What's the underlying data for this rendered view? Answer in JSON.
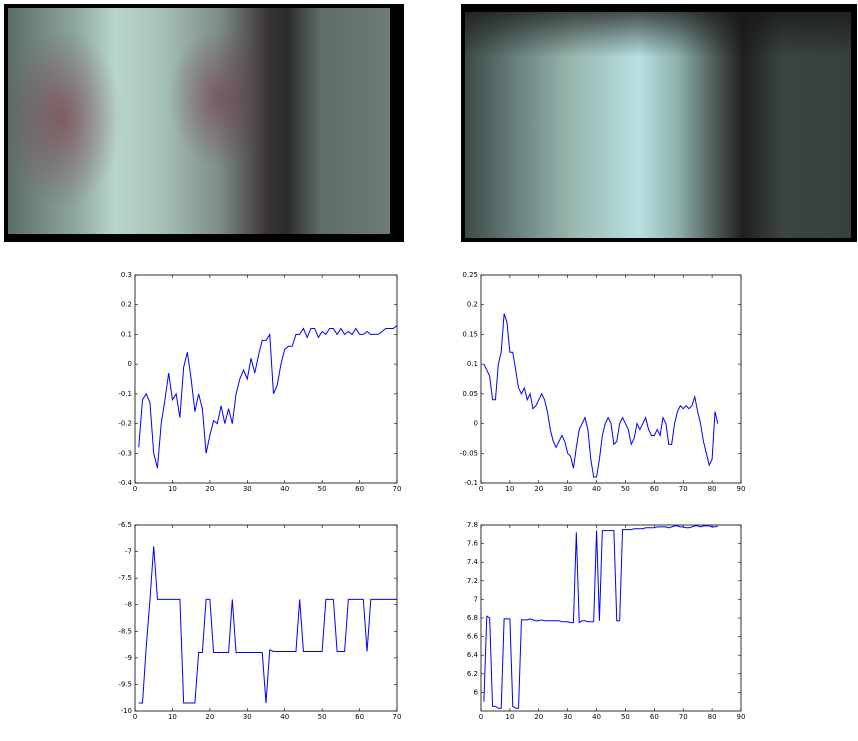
{
  "chart_data": [
    {
      "type": "line",
      "xlim": [
        0,
        70
      ],
      "xticks": [
        0,
        10,
        20,
        30,
        40,
        50,
        60,
        70
      ],
      "ylim": [
        -0.4,
        0.3
      ],
      "yticks": [
        -0.4,
        -0.3,
        -0.2,
        -0.1,
        0,
        0.1,
        0.2,
        0.3
      ],
      "series": [
        {
          "color": "#0000ff",
          "x": [
            1,
            2,
            3,
            4,
            5,
            6,
            7,
            8,
            9,
            10,
            11,
            12,
            13,
            14,
            15,
            16,
            17,
            18,
            19,
            20,
            21,
            22,
            23,
            24,
            25,
            26,
            27,
            28,
            29,
            30,
            31,
            32,
            33,
            34,
            35,
            36,
            37,
            38,
            39,
            40,
            41,
            42,
            43,
            44,
            45,
            46,
            47,
            48,
            49,
            50,
            51,
            52,
            53,
            54,
            55,
            56,
            57,
            58,
            59,
            60,
            61,
            62,
            63,
            64,
            65,
            66,
            67,
            68,
            69,
            70
          ],
          "values": [
            -0.28,
            -0.12,
            -0.1,
            -0.13,
            -0.3,
            -0.35,
            -0.2,
            -0.12,
            -0.03,
            -0.12,
            -0.1,
            -0.18,
            -0.01,
            0.04,
            -0.05,
            -0.16,
            -0.1,
            -0.15,
            -0.3,
            -0.24,
            -0.19,
            -0.2,
            -0.14,
            -0.2,
            -0.15,
            -0.2,
            -0.1,
            -0.05,
            -0.02,
            -0.05,
            0.02,
            -0.03,
            0.03,
            0.08,
            0.08,
            0.1,
            -0.1,
            -0.07,
            0.0,
            0.05,
            0.06,
            0.06,
            0.1,
            0.1,
            0.12,
            0.09,
            0.12,
            0.12,
            0.09,
            0.11,
            0.1,
            0.12,
            0.12,
            0.1,
            0.12,
            0.1,
            0.11,
            0.1,
            0.12,
            0.1,
            0.1,
            0.11,
            0.1,
            0.1,
            0.1,
            0.11,
            0.12,
            0.12,
            0.12,
            0.13
          ]
        }
      ]
    },
    {
      "type": "line",
      "xlim": [
        0,
        90
      ],
      "xticks": [
        0,
        10,
        20,
        30,
        40,
        50,
        60,
        70,
        80,
        90
      ],
      "ylim": [
        -0.1,
        0.25
      ],
      "yticks": [
        -0.1,
        -0.05,
        0,
        0.05,
        0.1,
        0.15,
        0.2,
        0.25
      ],
      "series": [
        {
          "color": "#0000ff",
          "x": [
            1,
            2,
            3,
            4,
            5,
            6,
            7,
            8,
            9,
            10,
            11,
            12,
            13,
            14,
            15,
            16,
            17,
            18,
            19,
            20,
            21,
            22,
            23,
            24,
            25,
            26,
            27,
            28,
            29,
            30,
            31,
            32,
            33,
            34,
            35,
            36,
            37,
            38,
            39,
            40,
            41,
            42,
            43,
            44,
            45,
            46,
            47,
            48,
            49,
            50,
            51,
            52,
            53,
            54,
            55,
            56,
            57,
            58,
            59,
            60,
            61,
            62,
            63,
            64,
            65,
            66,
            67,
            68,
            69,
            70,
            71,
            72,
            73,
            74,
            75,
            76,
            77,
            78,
            79,
            80,
            81,
            82
          ],
          "values": [
            0.1,
            0.09,
            0.08,
            0.04,
            0.04,
            0.1,
            0.12,
            0.185,
            0.17,
            0.12,
            0.12,
            0.09,
            0.06,
            0.05,
            0.06,
            0.04,
            0.05,
            0.025,
            0.03,
            0.04,
            0.05,
            0.04,
            0.02,
            -0.01,
            -0.03,
            -0.04,
            -0.03,
            -0.02,
            -0.03,
            -0.05,
            -0.055,
            -0.075,
            -0.04,
            -0.01,
            0.0,
            0.01,
            -0.01,
            -0.06,
            -0.09,
            -0.09,
            -0.06,
            -0.02,
            0.0,
            0.01,
            0.0,
            -0.035,
            -0.03,
            0.0,
            0.01,
            0.0,
            -0.01,
            -0.035,
            -0.025,
            0.0,
            -0.01,
            0.0,
            0.01,
            -0.01,
            -0.02,
            -0.02,
            -0.01,
            -0.02,
            0.01,
            0.0,
            -0.035,
            -0.035,
            0.0,
            0.02,
            0.03,
            0.025,
            0.03,
            0.025,
            0.03,
            0.045,
            0.02,
            0.0,
            -0.03,
            -0.05,
            -0.07,
            -0.06,
            0.02,
            0.0
          ]
        }
      ]
    },
    {
      "type": "line",
      "xlim": [
        0,
        70
      ],
      "xticks": [
        0,
        10,
        20,
        30,
        40,
        50,
        60,
        70
      ],
      "ylim": [
        -10,
        -6.5
      ],
      "yticks": [
        -10,
        -9.5,
        -9,
        -8.5,
        -8,
        -7.5,
        -7,
        -6.5
      ],
      "series": [
        {
          "color": "#0000ff",
          "x": [
            1,
            2,
            3,
            4,
            5,
            6,
            7,
            8,
            9,
            10,
            11,
            12,
            13,
            14,
            15,
            16,
            17,
            18,
            19,
            20,
            21,
            22,
            23,
            24,
            25,
            26,
            27,
            28,
            29,
            30,
            31,
            32,
            33,
            34,
            35,
            36,
            37,
            38,
            39,
            40,
            41,
            42,
            43,
            44,
            45,
            46,
            47,
            48,
            49,
            50,
            51,
            52,
            53,
            54,
            55,
            56,
            57,
            58,
            59,
            60,
            61,
            62,
            63,
            64,
            65,
            66,
            67,
            68,
            69,
            70
          ],
          "values": [
            -9.85,
            -9.85,
            -8.8,
            -7.9,
            -6.9,
            -7.9,
            -7.9,
            -7.9,
            -7.9,
            -7.9,
            -7.9,
            -7.9,
            -9.85,
            -9.85,
            -9.85,
            -9.85,
            -8.9,
            -8.9,
            -7.9,
            -7.9,
            -8.9,
            -8.9,
            -8.9,
            -8.9,
            -8.9,
            -7.9,
            -8.9,
            -8.9,
            -8.9,
            -8.9,
            -8.9,
            -8.9,
            -8.9,
            -8.9,
            -9.85,
            -8.85,
            -8.88,
            -8.88,
            -8.88,
            -8.88,
            -8.88,
            -8.88,
            -8.88,
            -7.9,
            -8.88,
            -8.88,
            -8.88,
            -8.88,
            -8.88,
            -8.88,
            -7.9,
            -7.9,
            -7.9,
            -8.88,
            -8.88,
            -8.88,
            -7.9,
            -7.9,
            -7.9,
            -7.9,
            -7.9,
            -8.88,
            -7.9,
            -7.9,
            -7.9,
            -7.9,
            -7.9,
            -7.9,
            -7.9,
            -7.9
          ]
        }
      ]
    },
    {
      "type": "line",
      "xlim": [
        0,
        90
      ],
      "xticks": [
        0,
        10,
        20,
        30,
        40,
        50,
        60,
        70,
        80,
        90
      ],
      "ylim": [
        5.8,
        7.8
      ],
      "yticks": [
        6,
        6.2,
        6.4,
        6.6,
        6.8,
        7,
        7.2,
        7.4,
        7.6,
        7.8
      ],
      "series": [
        {
          "color": "#0000ff",
          "x": [
            1,
            2,
            3,
            4,
            5,
            6,
            7,
            8,
            9,
            10,
            11,
            12,
            13,
            14,
            15,
            16,
            17,
            18,
            19,
            20,
            21,
            22,
            23,
            24,
            25,
            26,
            27,
            28,
            29,
            30,
            31,
            32,
            33,
            34,
            35,
            36,
            37,
            38,
            39,
            40,
            41,
            42,
            43,
            44,
            45,
            46,
            47,
            48,
            49,
            50,
            51,
            52,
            53,
            54,
            55,
            56,
            57,
            58,
            59,
            60,
            61,
            62,
            63,
            64,
            65,
            66,
            67,
            68,
            69,
            70,
            71,
            72,
            73,
            74,
            75,
            76,
            77,
            78,
            79,
            80,
            81,
            82
          ],
          "values": [
            5.9,
            6.82,
            6.8,
            5.85,
            5.85,
            5.83,
            5.83,
            6.79,
            6.79,
            6.79,
            5.85,
            5.83,
            5.83,
            6.78,
            6.78,
            6.78,
            6.79,
            6.78,
            6.77,
            6.77,
            6.78,
            6.77,
            6.77,
            6.77,
            6.77,
            6.77,
            6.77,
            6.76,
            6.76,
            6.76,
            6.75,
            6.75,
            7.72,
            6.75,
            6.77,
            6.77,
            6.76,
            6.76,
            6.76,
            7.74,
            6.77,
            7.74,
            7.74,
            7.74,
            7.74,
            7.74,
            6.77,
            6.77,
            7.75,
            7.75,
            7.75,
            7.75,
            7.76,
            7.76,
            7.76,
            7.76,
            7.77,
            7.77,
            7.77,
            7.77,
            7.78,
            7.78,
            7.78,
            7.78,
            7.77,
            7.78,
            7.79,
            7.79,
            7.78,
            7.78,
            7.77,
            7.77,
            7.78,
            7.79,
            7.79,
            7.78,
            7.79,
            7.79,
            7.79,
            7.78,
            7.78,
            7.79
          ]
        }
      ]
    }
  ]
}
